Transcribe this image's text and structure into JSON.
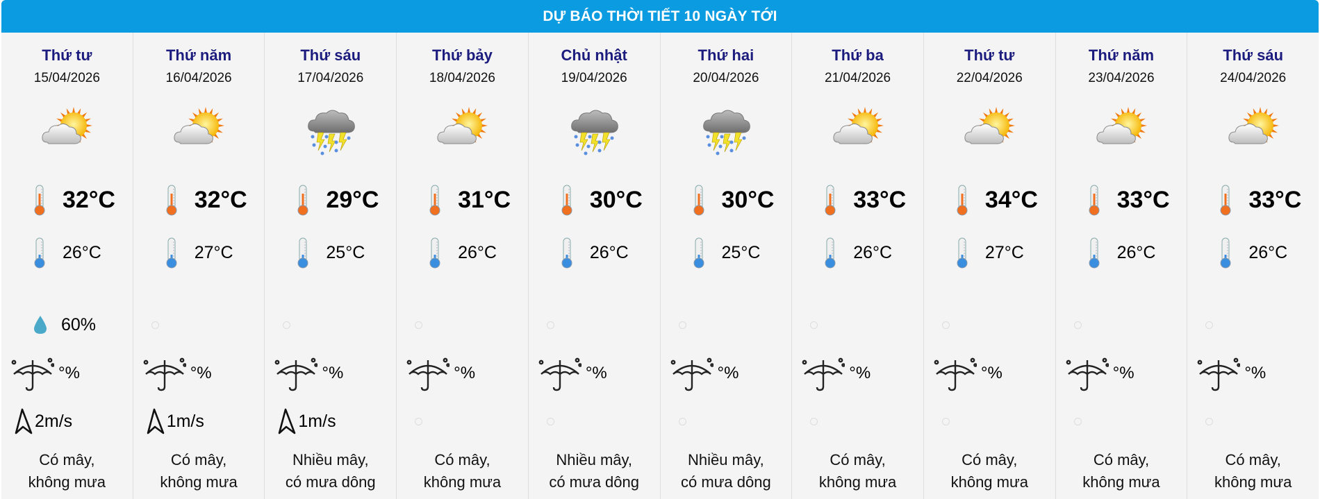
{
  "header": {
    "title": "DỰ BÁO THỜI TIẾT 10 NGÀY TỚI"
  },
  "colors": {
    "header_bg": "#0a9be0",
    "day_name": "#1c1c7e",
    "background": "#f4f4f4"
  },
  "days": [
    {
      "day": "Thứ tư",
      "date": "15/04/2026",
      "icon": "partly-cloudy",
      "high": "32°C",
      "low": "26°C",
      "humidity": "60%",
      "rain": "°%",
      "wind": "2m/s",
      "desc1": "Có mây,",
      "desc2": "không mưa"
    },
    {
      "day": "Thứ năm",
      "date": "16/04/2026",
      "icon": "partly-cloudy",
      "high": "32°C",
      "low": "27°C",
      "humidity": null,
      "rain": "°%",
      "wind": "1m/s",
      "desc1": "Có mây,",
      "desc2": "không mưa"
    },
    {
      "day": "Thứ sáu",
      "date": "17/04/2026",
      "icon": "thunderstorm",
      "high": "29°C",
      "low": "25°C",
      "humidity": null,
      "rain": "°%",
      "wind": "1m/s",
      "desc1": "Nhiều mây,",
      "desc2": "có mưa dông"
    },
    {
      "day": "Thứ bảy",
      "date": "18/04/2026",
      "icon": "partly-cloudy",
      "high": "31°C",
      "low": "26°C",
      "humidity": null,
      "rain": "°%",
      "wind": null,
      "desc1": "Có mây,",
      "desc2": "không mưa"
    },
    {
      "day": "Chủ nhật",
      "date": "19/04/2026",
      "icon": "thunderstorm",
      "high": "30°C",
      "low": "26°C",
      "humidity": null,
      "rain": "°%",
      "wind": null,
      "desc1": "Nhiều mây,",
      "desc2": "có mưa dông"
    },
    {
      "day": "Thứ hai",
      "date": "20/04/2026",
      "icon": "thunderstorm",
      "high": "30°C",
      "low": "25°C",
      "humidity": null,
      "rain": "°%",
      "wind": null,
      "desc1": "Nhiều mây,",
      "desc2": "có mưa dông"
    },
    {
      "day": "Thứ ba",
      "date": "21/04/2026",
      "icon": "partly-cloudy",
      "high": "33°C",
      "low": "26°C",
      "humidity": null,
      "rain": "°%",
      "wind": null,
      "desc1": "Có mây,",
      "desc2": "không mưa"
    },
    {
      "day": "Thứ tư",
      "date": "22/04/2026",
      "icon": "partly-cloudy",
      "high": "34°C",
      "low": "27°C",
      "humidity": null,
      "rain": "°%",
      "wind": null,
      "desc1": "Có mây,",
      "desc2": "không mưa"
    },
    {
      "day": "Thứ năm",
      "date": "23/04/2026",
      "icon": "partly-cloudy",
      "high": "33°C",
      "low": "26°C",
      "humidity": null,
      "rain": "°%",
      "wind": null,
      "desc1": "Có mây,",
      "desc2": "không mưa"
    },
    {
      "day": "Thứ sáu",
      "date": "24/04/2026",
      "icon": "partly-cloudy",
      "high": "33°C",
      "low": "26°C",
      "humidity": null,
      "rain": "°%",
      "wind": null,
      "desc1": "Có mây,",
      "desc2": "không mưa"
    }
  ]
}
